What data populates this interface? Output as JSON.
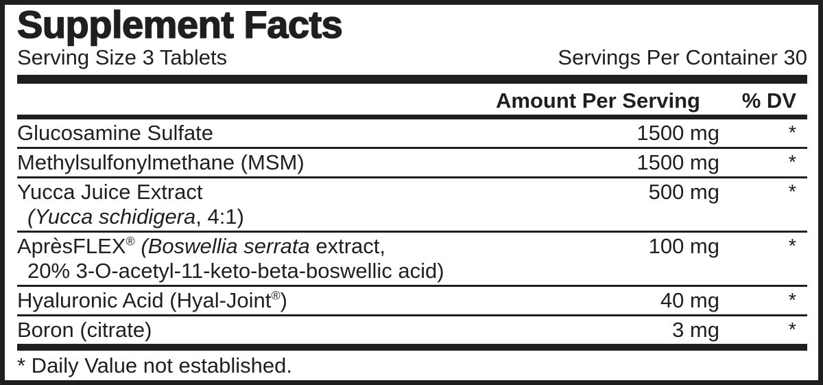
{
  "title": "Supplement Facts",
  "serving": {
    "size": "Serving Size 3 Tablets",
    "per_container": "Servings Per Container 30"
  },
  "columns": {
    "amount": "Amount Per Serving",
    "dv": "% DV"
  },
  "rows": [
    {
      "lines": [
        {
          "indent": false,
          "segments": [
            {
              "t": "Glucosamine Sulfate"
            }
          ]
        }
      ],
      "amount": "1500 mg",
      "dv": "*"
    },
    {
      "lines": [
        {
          "indent": false,
          "segments": [
            {
              "t": "Methylsulfonylmethane (MSM)"
            }
          ]
        }
      ],
      "amount": "1500 mg",
      "dv": "*"
    },
    {
      "lines": [
        {
          "indent": false,
          "segments": [
            {
              "t": "Yucca Juice Extract"
            }
          ]
        },
        {
          "indent": true,
          "segments": [
            {
              "t": "(Yucca schidigera",
              "i": true
            },
            {
              "t": ", 4:1)"
            }
          ]
        }
      ],
      "amount": "500 mg",
      "dv": "*"
    },
    {
      "lines": [
        {
          "indent": false,
          "segments": [
            {
              "t": "AprèsFLEX"
            },
            {
              "t": "®",
              "s": true
            },
            {
              "t": " "
            },
            {
              "t": "(Boswellia serrata",
              "i": true
            },
            {
              "t": " extract,"
            }
          ]
        },
        {
          "indent": true,
          "segments": [
            {
              "t": "20% 3-O-acetyl-11-keto-beta-boswellic acid)"
            }
          ]
        }
      ],
      "amount": "100 mg",
      "dv": "*"
    },
    {
      "lines": [
        {
          "indent": false,
          "segments": [
            {
              "t": "Hyaluronic Acid (Hyal-Joint"
            },
            {
              "t": "®",
              "s": true
            },
            {
              "t": ")"
            }
          ]
        }
      ],
      "amount": "40 mg",
      "dv": "*"
    },
    {
      "lines": [
        {
          "indent": false,
          "segments": [
            {
              "t": "Boron (citrate)"
            }
          ]
        }
      ],
      "amount": "3 mg",
      "dv": "*"
    }
  ],
  "footnote": "* Daily Value not established.",
  "colors": {
    "ink": "#211e1e",
    "background": "#ffffff"
  }
}
